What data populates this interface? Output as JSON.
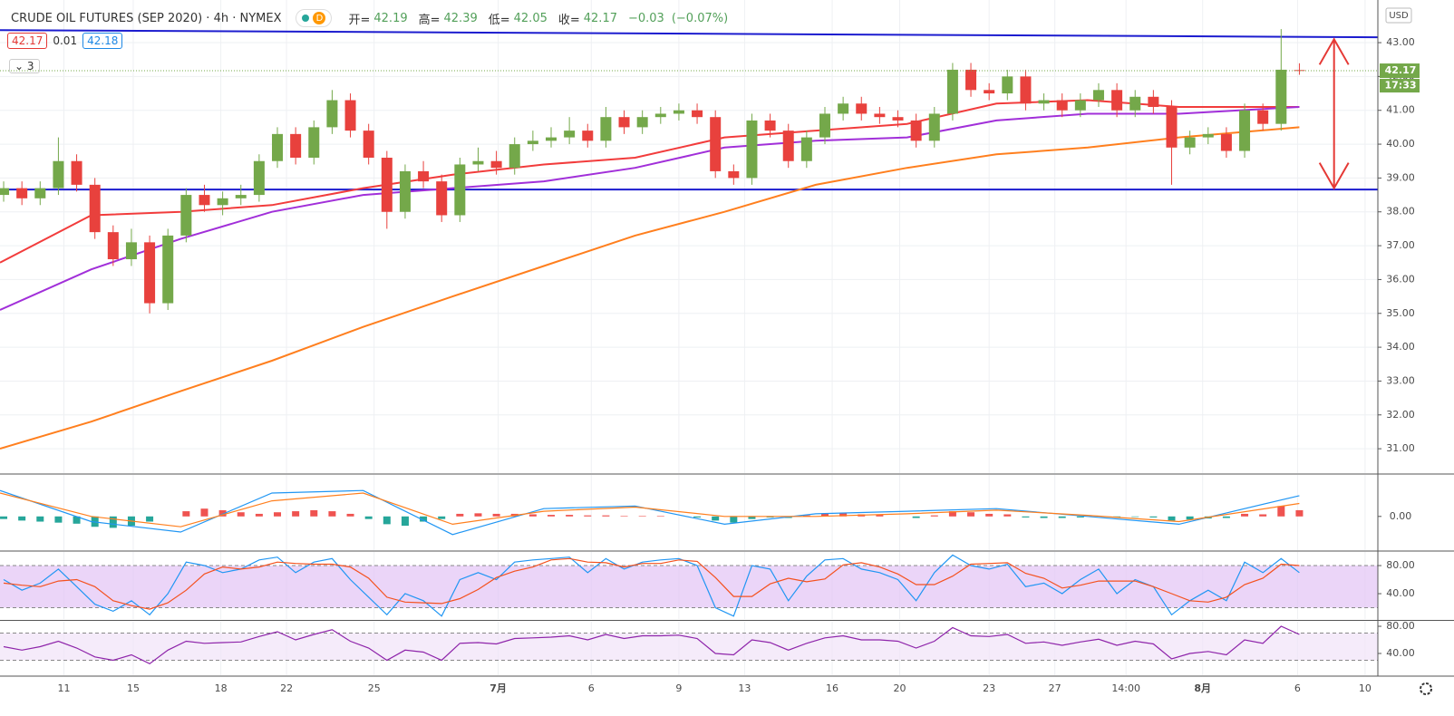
{
  "header": {
    "title": "CRUDE OIL FUTURES (SEP 2020) · 4h · NYMEX",
    "interval_badge": "D",
    "ohlc_labels": [
      "开=",
      "高=",
      "低=",
      "收="
    ],
    "change": "−0.03",
    "change_pct": "(−0.07%)",
    "bid": 42.17,
    "spread": 0.01,
    "ask": 42.18,
    "indicators_collapsed": 3,
    "currency": "USD",
    "countdown": "17:33"
  },
  "chart_data": [
    {
      "type": "candlestick",
      "grid": true,
      "up_color": "#74a84a",
      "down_color": "#e8413d",
      "xlim": [
        -0.2,
        75.3
      ],
      "xticks": [
        {
          "value": 3.3,
          "label": "11"
        },
        {
          "value": 7.1,
          "label": "15"
        },
        {
          "value": 11.9,
          "label": "18"
        },
        {
          "value": 15.5,
          "label": "22"
        },
        {
          "value": 20.3,
          "label": "25"
        },
        {
          "value": 27.1,
          "label": "7月"
        },
        {
          "value": 32.2,
          "label": "6"
        },
        {
          "value": 37,
          "label": "9"
        },
        {
          "value": 40.6,
          "label": "13"
        },
        {
          "value": 45.4,
          "label": "16"
        },
        {
          "value": 49.1,
          "label": "20"
        },
        {
          "value": 54,
          "label": "23"
        },
        {
          "value": 57.6,
          "label": "27"
        },
        {
          "value": 61.5,
          "label": "14:00"
        },
        {
          "value": 65.7,
          "label": "8月"
        },
        {
          "value": 70.9,
          "label": "6"
        },
        {
          "value": 74.6,
          "label": "10"
        }
      ],
      "ylim": [
        30.28,
        44.26
      ],
      "yticks": [
        {
          "value": 31,
          "label": "31.00"
        },
        {
          "value": 32,
          "label": "32.00"
        },
        {
          "value": 33,
          "label": "33.00"
        },
        {
          "value": 34,
          "label": "34.00"
        },
        {
          "value": 35,
          "label": "35.00"
        },
        {
          "value": 36,
          "label": "36.00"
        },
        {
          "value": 37,
          "label": "37.00"
        },
        {
          "value": 38,
          "label": "38.00"
        },
        {
          "value": 39,
          "label": "39.00"
        },
        {
          "value": 40,
          "label": "40.00"
        },
        {
          "value": 41,
          "label": "41.00"
        },
        {
          "value": 42,
          "label": "42.00"
        },
        {
          "value": 43,
          "label": "43.00"
        }
      ],
      "open": [
        38.5,
        38.7,
        38.4,
        38.7,
        39.5,
        38.8,
        37.4,
        36.6,
        37.1,
        35.3,
        37.3,
        38.5,
        38.2,
        38.4,
        38.5,
        39.5,
        40.3,
        39.6,
        40.5,
        41.3,
        40.4,
        39.6,
        38.0,
        39.2,
        38.9,
        37.9,
        39.4,
        39.5,
        39.3,
        40.0,
        40.1,
        40.2,
        40.4,
        40.1,
        40.8,
        40.5,
        40.8,
        40.9,
        41.0,
        40.8,
        39.2,
        39.0,
        40.7,
        40.4,
        39.5,
        40.2,
        40.9,
        41.2,
        40.9,
        40.8,
        40.7,
        40.1,
        40.9,
        42.2,
        41.6,
        41.5,
        42.0,
        41.2,
        41.3,
        41.0,
        41.3,
        41.6,
        41.0,
        41.4,
        41.1,
        39.9,
        40.2,
        40.3,
        39.8,
        41.0,
        40.6,
        42.19
      ],
      "high": [
        38.9,
        38.9,
        38.9,
        40.2,
        39.7,
        39.0,
        37.6,
        37.5,
        37.3,
        37.5,
        38.7,
        38.8,
        38.6,
        38.8,
        39.7,
        40.5,
        40.5,
        40.7,
        41.6,
        41.5,
        40.6,
        39.8,
        39.4,
        39.5,
        39.1,
        39.6,
        39.9,
        39.8,
        40.2,
        40.4,
        40.5,
        40.8,
        40.6,
        41.1,
        41.0,
        41.0,
        41.1,
        41.2,
        41.2,
        41.0,
        39.4,
        40.9,
        40.9,
        40.6,
        40.4,
        41.1,
        41.4,
        41.4,
        41.1,
        41.0,
        40.9,
        41.1,
        42.4,
        42.4,
        41.8,
        42.2,
        42.2,
        41.5,
        41.5,
        41.5,
        41.8,
        41.8,
        41.6,
        41.6,
        41.3,
        40.4,
        40.5,
        40.5,
        41.2,
        41.2,
        43.4,
        42.39
      ],
      "low": [
        38.3,
        38.2,
        38.2,
        38.5,
        38.6,
        37.2,
        36.4,
        36.4,
        35.0,
        35.1,
        37.1,
        38.0,
        37.9,
        38.2,
        38.3,
        39.3,
        39.4,
        39.4,
        40.3,
        40.2,
        39.4,
        37.5,
        37.8,
        38.7,
        37.7,
        37.7,
        39.2,
        39.1,
        39.1,
        39.8,
        39.9,
        40.0,
        39.9,
        39.9,
        40.3,
        40.3,
        40.6,
        40.7,
        40.6,
        39.0,
        38.8,
        38.8,
        40.2,
        39.3,
        39.3,
        40.0,
        40.7,
        40.7,
        40.6,
        40.5,
        39.9,
        39.9,
        40.7,
        41.4,
        41.3,
        41.3,
        41.0,
        41.0,
        40.8,
        40.8,
        41.1,
        40.8,
        40.8,
        40.9,
        38.8,
        39.7,
        40.0,
        39.6,
        39.6,
        40.4,
        40.4,
        42.05
      ],
      "close": [
        38.7,
        38.4,
        38.7,
        39.5,
        38.8,
        37.4,
        36.6,
        37.1,
        35.3,
        37.3,
        38.5,
        38.2,
        38.4,
        38.5,
        39.5,
        40.3,
        39.6,
        40.5,
        41.3,
        40.4,
        39.6,
        38.0,
        39.2,
        38.9,
        37.9,
        39.4,
        39.5,
        39.3,
        40.0,
        40.1,
        40.2,
        40.4,
        40.1,
        40.8,
        40.5,
        40.8,
        40.9,
        41.0,
        40.8,
        39.2,
        39.0,
        40.7,
        40.4,
        39.5,
        40.2,
        40.9,
        41.2,
        40.9,
        40.8,
        40.7,
        40.1,
        40.9,
        42.2,
        41.6,
        41.5,
        42.0,
        41.2,
        41.3,
        41.0,
        41.3,
        41.6,
        41.0,
        41.4,
        41.1,
        39.9,
        40.2,
        40.3,
        39.8,
        41.0,
        40.6,
        42.2,
        42.17
      ],
      "line_x": [
        -0.2,
        4.8,
        9.7,
        14.7,
        19.7,
        24.6,
        29.6,
        34.6,
        39.5,
        44.5,
        49.5,
        54.4,
        59.4,
        64.4,
        71
      ],
      "lines": [
        {
          "color": "#f23c3c",
          "values": [
            36.5,
            37.9,
            38.0,
            38.2,
            38.7,
            39.1,
            39.4,
            39.6,
            40.2,
            40.4,
            40.6,
            41.2,
            41.3,
            41.1,
            41.1
          ]
        },
        {
          "color": "#a12fd9",
          "values": [
            35.1,
            36.3,
            37.2,
            38.0,
            38.5,
            38.7,
            38.9,
            39.3,
            39.9,
            40.1,
            40.2,
            40.7,
            40.9,
            40.9,
            41.1
          ]
        },
        {
          "color": "#ff7f1e",
          "values": [
            31.0,
            31.8,
            32.7,
            33.6,
            34.6,
            35.5,
            36.4,
            37.3,
            38.0,
            38.8,
            39.3,
            39.7,
            39.9,
            40.2,
            40.5
          ]
        }
      ],
      "trendlines": [
        {
          "color": "#1c1ccf",
          "x": [
            -0.2,
            75.3
          ],
          "values": [
            43.37,
            43.16
          ]
        },
        {
          "color": "#1c1ccf",
          "x": [
            -0.2,
            75.3
          ],
          "values": [
            38.66,
            38.66
          ]
        }
      ],
      "arrow": {
        "color": "#e53935",
        "x": 72.9,
        "values": [
          43.1,
          38.7
        ]
      }
    },
    {
      "type": "macd",
      "ylim": [
        -0.65,
        0.8
      ],
      "yticks": [
        {
          "value": 0,
          "label": "0.00"
        }
      ],
      "pos_color": "#ef5350",
      "neg_color": "#26a69a",
      "histogram": [
        -0.05,
        -0.08,
        -0.1,
        -0.12,
        -0.14,
        -0.2,
        -0.22,
        -0.18,
        -0.1,
        0.0,
        0.1,
        0.15,
        0.12,
        0.08,
        0.05,
        0.08,
        0.1,
        0.12,
        0.1,
        0.05,
        -0.05,
        -0.15,
        -0.18,
        -0.1,
        -0.05,
        0.05,
        0.06,
        0.05,
        0.05,
        0.04,
        0.03,
        0.03,
        0.02,
        0.02,
        0.01,
        0.01,
        0.01,
        0.0,
        -0.02,
        -0.08,
        -0.12,
        -0.05,
        -0.02,
        -0.03,
        0.02,
        0.05,
        0.06,
        0.04,
        0.03,
        0.0,
        -0.03,
        0.02,
        0.1,
        0.08,
        0.05,
        0.04,
        -0.02,
        -0.03,
        -0.03,
        -0.02,
        0.0,
        -0.02,
        -0.01,
        -0.02,
        -0.08,
        -0.06,
        -0.04,
        -0.03,
        0.05,
        0.04,
        0.2,
        0.12
      ],
      "x": [
        -0.2,
        4.8,
        9.7,
        14.7,
        19.7,
        24.6,
        29.6,
        34.6,
        39.5,
        44.5,
        49.5,
        54.4,
        59.4,
        64.4,
        71
      ],
      "series": [
        {
          "color": "#2196f3",
          "values": [
            0.5,
            -0.1,
            -0.3,
            0.45,
            0.5,
            -0.35,
            0.15,
            0.2,
            -0.15,
            0.05,
            0.1,
            0.15,
            0.0,
            -0.15,
            0.4
          ]
        },
        {
          "color": "#ff7f1e",
          "values": [
            0.45,
            0.0,
            -0.2,
            0.3,
            0.45,
            -0.15,
            0.1,
            0.18,
            0.0,
            0.0,
            0.05,
            0.12,
            0.02,
            -0.1,
            0.25
          ]
        }
      ]
    },
    {
      "type": "stochastic",
      "ylim": [
        3.9,
        99.4
      ],
      "yticks": [
        {
          "value": 40,
          "label": "40.00"
        },
        {
          "value": 80,
          "label": "80.00"
        }
      ],
      "band": [
        20,
        80
      ],
      "band_color": "#e3c3f5",
      "series": [
        {
          "color": "#2196f3",
          "values": [
            60,
            45,
            55,
            75,
            50,
            25,
            15,
            30,
            10,
            40,
            85,
            80,
            70,
            75,
            88,
            92,
            70,
            85,
            90,
            60,
            35,
            10,
            40,
            30,
            8,
            60,
            70,
            60,
            85,
            88,
            90,
            92,
            70,
            90,
            75,
            85,
            88,
            90,
            80,
            20,
            8,
            80,
            75,
            30,
            65,
            88,
            90,
            75,
            70,
            60,
            30,
            70,
            95,
            80,
            75,
            82,
            50,
            55,
            40,
            60,
            75,
            40,
            60,
            50,
            10,
            30,
            45,
            30,
            85,
            70,
            90,
            70
          ]
        },
        {
          "color": "#f4511e",
          "values": [
            55,
            52,
            50,
            58,
            60,
            50,
            30,
            23,
            18,
            27,
            45,
            68,
            78,
            75,
            78,
            85,
            83,
            82,
            82,
            78,
            62,
            35,
            28,
            27,
            26,
            33,
            46,
            63,
            72,
            78,
            88,
            90,
            85,
            84,
            78,
            83,
            83,
            88,
            86,
            63,
            36,
            36,
            54,
            62,
            57,
            61,
            81,
            84,
            78,
            68,
            53,
            53,
            65,
            82,
            83,
            84,
            69,
            62,
            48,
            52,
            58,
            58,
            58,
            50,
            40,
            30,
            28,
            35,
            53,
            62,
            82,
            80
          ]
        }
      ]
    },
    {
      "type": "rsi",
      "ylim": [
        8,
        86.7
      ],
      "yticks": [
        {
          "value": 40,
          "label": "40.00"
        },
        {
          "value": 80,
          "label": "80.00"
        }
      ],
      "band": [
        30,
        70
      ],
      "band_color": "#f1e2f8",
      "series": [
        {
          "color": "#8e24aa",
          "values": [
            50,
            45,
            50,
            58,
            48,
            35,
            30,
            38,
            25,
            45,
            58,
            55,
            56,
            57,
            65,
            72,
            60,
            68,
            75,
            58,
            48,
            30,
            45,
            42,
            30,
            55,
            56,
            54,
            62,
            63,
            64,
            66,
            60,
            68,
            62,
            66,
            66,
            67,
            62,
            40,
            38,
            60,
            56,
            45,
            55,
            63,
            66,
            60,
            60,
            58,
            48,
            58,
            78,
            66,
            65,
            68,
            55,
            57,
            52,
            57,
            61,
            52,
            58,
            54,
            32,
            40,
            43,
            38,
            60,
            55,
            80,
            68
          ]
        }
      ]
    }
  ]
}
